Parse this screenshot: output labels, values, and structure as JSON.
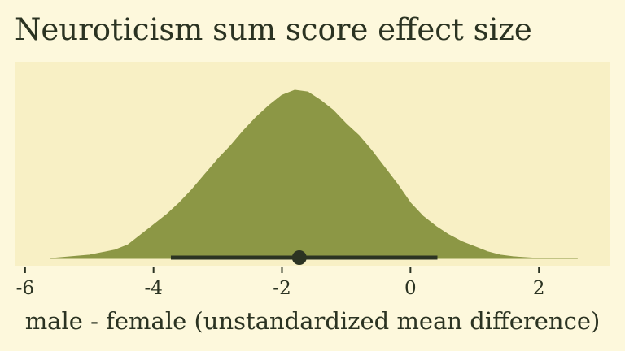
{
  "chart_data": {
    "type": "area",
    "title": "Neuroticism sum score effect size",
    "xlabel": "male - female (unstandardized mean difference)",
    "ylabel": "",
    "xlim": [
      -6.15,
      3.1
    ],
    "x_ticks": [
      -6,
      -4,
      -2,
      0,
      2
    ],
    "x_tick_labels": [
      "-6",
      "-4",
      "-2",
      "0",
      "2"
    ],
    "grid": false,
    "legend": "none",
    "density": {
      "x": [
        -5.6,
        -5.0,
        -4.6,
        -4.4,
        -4.2,
        -4.0,
        -3.8,
        -3.6,
        -3.4,
        -3.2,
        -3.0,
        -2.8,
        -2.6,
        -2.4,
        -2.2,
        -2.0,
        -1.8,
        -1.6,
        -1.4,
        -1.2,
        -1.0,
        -0.8,
        -0.6,
        -0.4,
        -0.2,
        0.0,
        0.2,
        0.4,
        0.6,
        0.8,
        1.0,
        1.2,
        1.4,
        1.6,
        2.0,
        2.6
      ],
      "y": [
        0.0,
        0.02,
        0.05,
        0.08,
        0.14,
        0.2,
        0.26,
        0.33,
        0.41,
        0.5,
        0.59,
        0.67,
        0.76,
        0.84,
        0.91,
        0.97,
        1.0,
        0.99,
        0.94,
        0.88,
        0.8,
        0.73,
        0.64,
        0.54,
        0.44,
        0.33,
        0.25,
        0.19,
        0.14,
        0.1,
        0.07,
        0.04,
        0.02,
        0.01,
        0.0,
        0.0
      ]
    },
    "point_estimate": -1.73,
    "interval": [
      -3.73,
      0.42
    ],
    "colors": {
      "background": "#fdf8dc",
      "panel": "#f8f0c5",
      "density_fill": "#8c9745",
      "interval": "#2b3322",
      "text": "#2b3322"
    }
  }
}
